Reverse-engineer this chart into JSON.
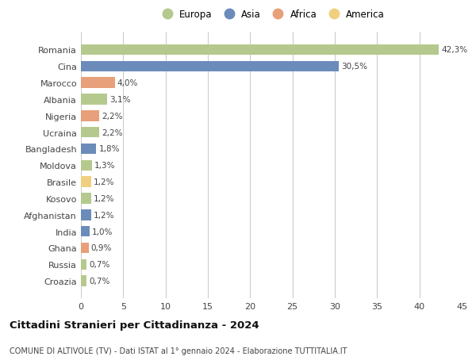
{
  "countries": [
    "Romania",
    "Cina",
    "Marocco",
    "Albania",
    "Nigeria",
    "Ucraina",
    "Bangladesh",
    "Moldova",
    "Brasile",
    "Kosovo",
    "Afghanistan",
    "India",
    "Ghana",
    "Russia",
    "Croazia"
  ],
  "values": [
    42.3,
    30.5,
    4.0,
    3.1,
    2.2,
    2.2,
    1.8,
    1.3,
    1.2,
    1.2,
    1.2,
    1.0,
    0.9,
    0.7,
    0.7
  ],
  "labels": [
    "42,3%",
    "30,5%",
    "4,0%",
    "3,1%",
    "2,2%",
    "2,2%",
    "1,8%",
    "1,3%",
    "1,2%",
    "1,2%",
    "1,2%",
    "1,0%",
    "0,9%",
    "0,7%",
    "0,7%"
  ],
  "continents": [
    "Europa",
    "Asia",
    "Africa",
    "Europa",
    "Africa",
    "Europa",
    "Asia",
    "Europa",
    "America",
    "Europa",
    "Asia",
    "Asia",
    "Africa",
    "Europa",
    "Europa"
  ],
  "continent_colors": {
    "Europa": "#b5c98e",
    "Asia": "#6b8cba",
    "Africa": "#e8a07a",
    "America": "#f0d080"
  },
  "legend_order": [
    "Europa",
    "Asia",
    "Africa",
    "America"
  ],
  "title": "Cittadini Stranieri per Cittadinanza - 2024",
  "subtitle": "COMUNE DI ALTIVOLE (TV) - Dati ISTAT al 1° gennaio 2024 - Elaborazione TUTTITALIA.IT",
  "xlim": [
    0,
    45
  ],
  "xticks": [
    0,
    5,
    10,
    15,
    20,
    25,
    30,
    35,
    40,
    45
  ],
  "background_color": "#ffffff",
  "grid_color": "#cccccc"
}
